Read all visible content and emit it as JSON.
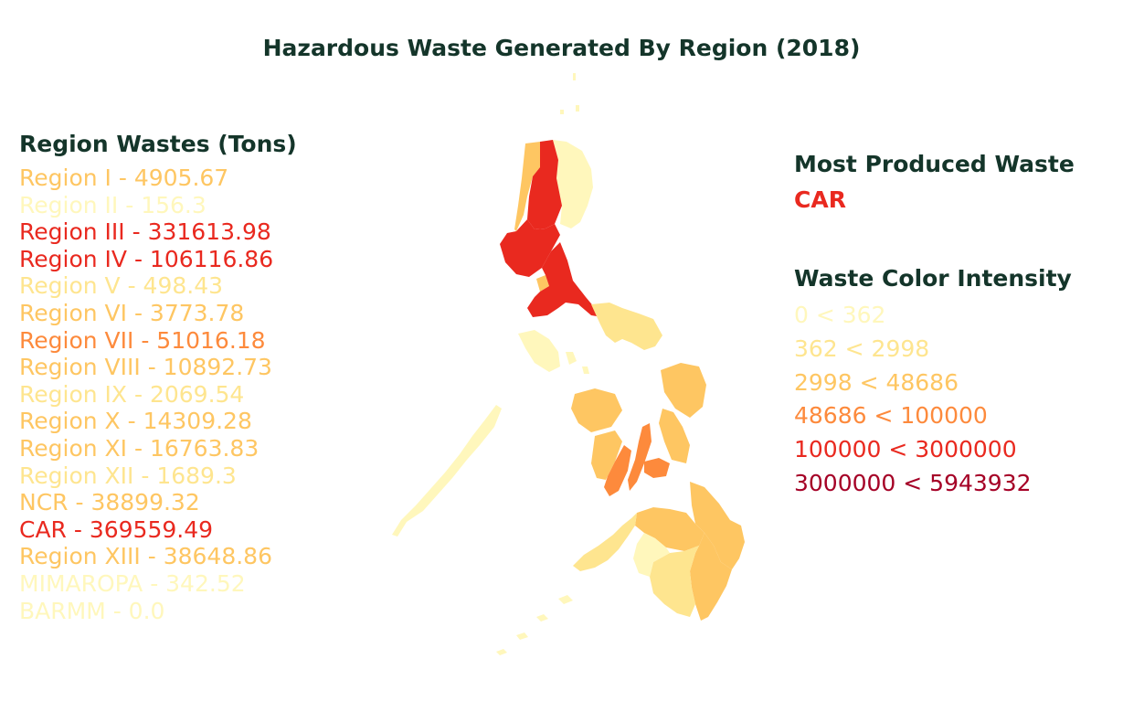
{
  "title": "Hazardous Waste Generated By Region (2018)",
  "regions_heading": "Region Wastes (Tons)",
  "regions": [
    {
      "label": "Region I - 4905.67",
      "name": "Region I",
      "value": 4905.67,
      "color": "#fec662"
    },
    {
      "label": "Region II - 156.3",
      "name": "Region II",
      "value": 156.3,
      "color": "#fff7bc"
    },
    {
      "label": "Region III - 331613.98",
      "name": "Region III",
      "value": 331613.98,
      "color": "#e9291f"
    },
    {
      "label": "Region IV - 106116.86",
      "name": "Region IV",
      "value": 106116.86,
      "color": "#e9291f"
    },
    {
      "label": "Region V - 498.43",
      "name": "Region V",
      "value": 498.43,
      "color": "#fee58f"
    },
    {
      "label": "Region VI - 3773.78",
      "name": "Region VI",
      "value": 3773.78,
      "color": "#fec662"
    },
    {
      "label": "Region VII - 51016.18",
      "name": "Region VII",
      "value": 51016.18,
      "color": "#fd8a3c"
    },
    {
      "label": "Region VIII - 10892.73",
      "name": "Region VIII",
      "value": 10892.73,
      "color": "#fec662"
    },
    {
      "label": "Region IX - 2069.54",
      "name": "Region IX",
      "value": 2069.54,
      "color": "#fee58f"
    },
    {
      "label": "Region X - 14309.28",
      "name": "Region X",
      "value": 14309.28,
      "color": "#fec662"
    },
    {
      "label": "Region XI - 16763.83",
      "name": "Region XI",
      "value": 16763.83,
      "color": "#fec662"
    },
    {
      "label": "Region XII - 1689.3",
      "name": "Region XII",
      "value": 1689.3,
      "color": "#fee58f"
    },
    {
      "label": "NCR - 38899.32",
      "name": "NCR",
      "value": 38899.32,
      "color": "#fec662"
    },
    {
      "label": "CAR - 369559.49",
      "name": "CAR",
      "value": 369559.49,
      "color": "#e9291f"
    },
    {
      "label": "Region XIII - 38648.86",
      "name": "Region XIII",
      "value": 38648.86,
      "color": "#fec662"
    },
    {
      "label": "MIMAROPA - 342.52",
      "name": "MIMAROPA",
      "value": 342.52,
      "color": "#fff7bc"
    },
    {
      "label": "BARMM - 0.0",
      "name": "BARMM",
      "value": 0.0,
      "color": "#fff7bc"
    }
  ],
  "most_produced": {
    "heading": "Most Produced Waste",
    "value": "CAR",
    "color": "#e9291f"
  },
  "intensity": {
    "heading": "Waste Color Intensity",
    "levels": [
      {
        "label": "0 < 362",
        "color": "#fff7bc"
      },
      {
        "label": "362 < 2998",
        "color": "#fee58f"
      },
      {
        "label": "2998 < 48686",
        "color": "#fec662"
      },
      {
        "label": "48686 < 100000",
        "color": "#fd8a3c"
      },
      {
        "label": "100000 < 3000000",
        "color": "#e9291f"
      },
      {
        "label": "3000000 < 5943932",
        "color": "#a50026"
      }
    ]
  },
  "colors": {
    "heading": "#14352a"
  }
}
